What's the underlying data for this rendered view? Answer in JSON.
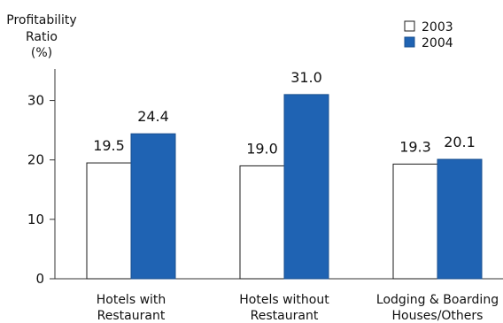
{
  "chart_data": {
    "type": "bar",
    "ylabel_lines": [
      "Profitability",
      "Ratio",
      "(%)"
    ],
    "categories": [
      [
        "Hotels with",
        "Restaurant"
      ],
      [
        "Hotels without",
        "Restaurant"
      ],
      [
        "Lodging & Boarding",
        "Houses/Others"
      ]
    ],
    "series": [
      {
        "name": "2003",
        "values": [
          19.5,
          19.0,
          19.3
        ],
        "color": "#ffffff",
        "stroke": "#1a1a1a"
      },
      {
        "name": "2004",
        "values": [
          24.4,
          31.0,
          20.1
        ],
        "color": "#1f63b3",
        "stroke": "#1a4f8f"
      }
    ],
    "value_labels": [
      [
        "19.5",
        "19.0",
        "19.3"
      ],
      [
        "24.4",
        "31.0",
        "20.1"
      ]
    ],
    "ylim": [
      0,
      35
    ],
    "yticks": [
      0,
      10,
      20,
      30
    ],
    "legend_position": "top-right",
    "grid": false
  }
}
